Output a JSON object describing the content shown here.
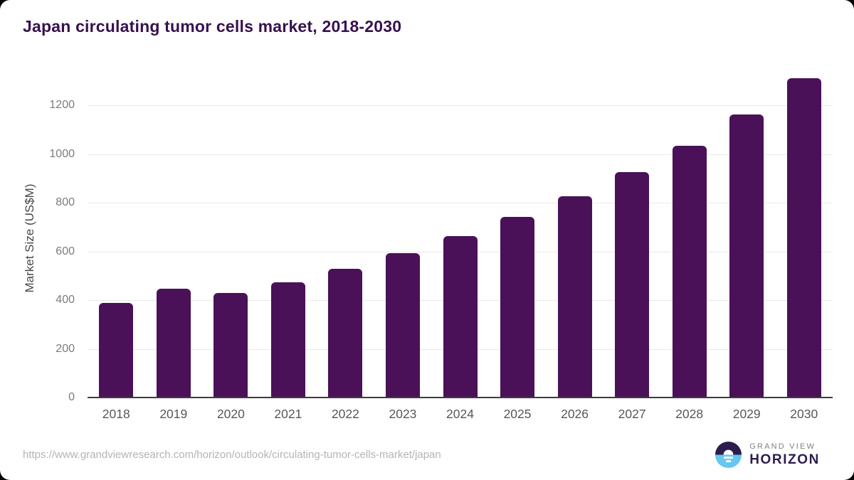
{
  "title": "Japan circulating tumor cells market, 2018-2030",
  "chart_data": {
    "type": "bar",
    "categories": [
      "2018",
      "2019",
      "2020",
      "2021",
      "2022",
      "2023",
      "2024",
      "2025",
      "2026",
      "2027",
      "2028",
      "2029",
      "2030"
    ],
    "values": [
      388,
      447,
      430,
      473,
      529,
      593,
      663,
      742,
      828,
      927,
      1035,
      1162,
      1313
    ],
    "title": "Japan circulating tumor cells market, 2018-2030",
    "xlabel": "",
    "ylabel": "Market Size (US$M)",
    "ylim": [
      0,
      1341
    ],
    "yticks": [
      0,
      200,
      400,
      600,
      800,
      1000,
      1200
    ],
    "grid": "horizontal",
    "legend_position": "none",
    "bar_color": "#4a1158"
  },
  "colors": {
    "title": "#38104f",
    "bar": "#4a1158",
    "gridline": "#e9e9eb",
    "axis_line": "#3c3c3e",
    "y_tick": "#7c7c80",
    "x_tick": "#57575a",
    "url_text": "#b4b4b4",
    "logo_purple": "#2d1d4e",
    "logo_blue": "#67c7f1"
  },
  "footer": {
    "source_url": "https://www.grandviewresearch.com/horizon/outlook/circulating-tumor-cells-market/japan",
    "logo": {
      "brand_top": "GRAND VIEW",
      "brand_bottom": "HORIZON"
    }
  }
}
